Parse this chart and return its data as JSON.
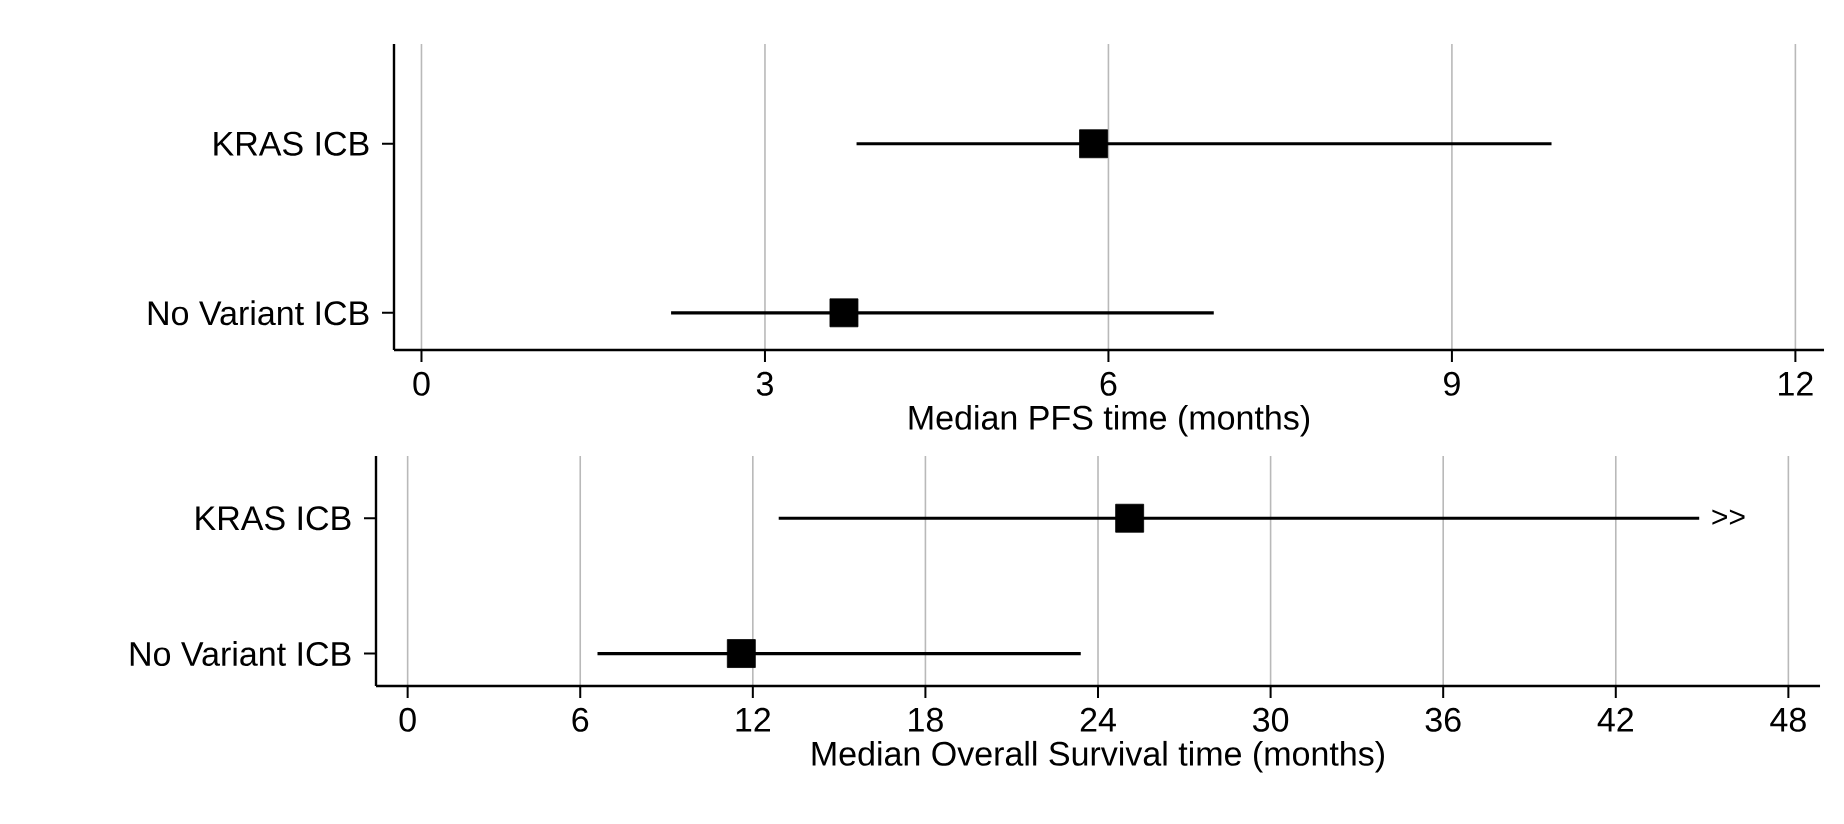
{
  "chart_data": [
    {
      "type": "scatter",
      "orientation": "horizontal",
      "categories": [
        "KRAS ICB",
        "No Variant ICB"
      ],
      "series": [
        {
          "color": "#000000",
          "values": [
            5.87,
            3.69
          ],
          "errors": [
            [
              3.8,
              9.87
            ],
            [
              2.18,
              6.92
            ]
          ]
        }
      ],
      "marker": "square",
      "xlim": [
        -0.24,
        12.25
      ],
      "xticks": [
        0,
        3,
        6,
        9,
        12
      ],
      "xlabel": "Median PFS time (months)",
      "grid": "x"
    },
    {
      "type": "scatter",
      "orientation": "horizontal",
      "categories": [
        "KRAS ICB",
        "No Variant ICB"
      ],
      "series": [
        {
          "color": "#000000",
          "values": [
            25.1,
            11.6
          ],
          "errors": [
            [
              12.9,
              44.9
            ],
            [
              6.6,
              23.4
            ]
          ]
        }
      ],
      "marker": "square",
      "xlim": [
        -1.1,
        49.1
      ],
      "xticks": [
        0,
        6,
        12,
        18,
        24,
        30,
        36,
        42,
        48
      ],
      "xlabel": "Median Overall Survival time (months)",
      "grid": "x",
      "annotations": [
        {
          "text": ">>",
          "x": 44.9,
          "y": "KRAS ICB"
        }
      ]
    }
  ]
}
